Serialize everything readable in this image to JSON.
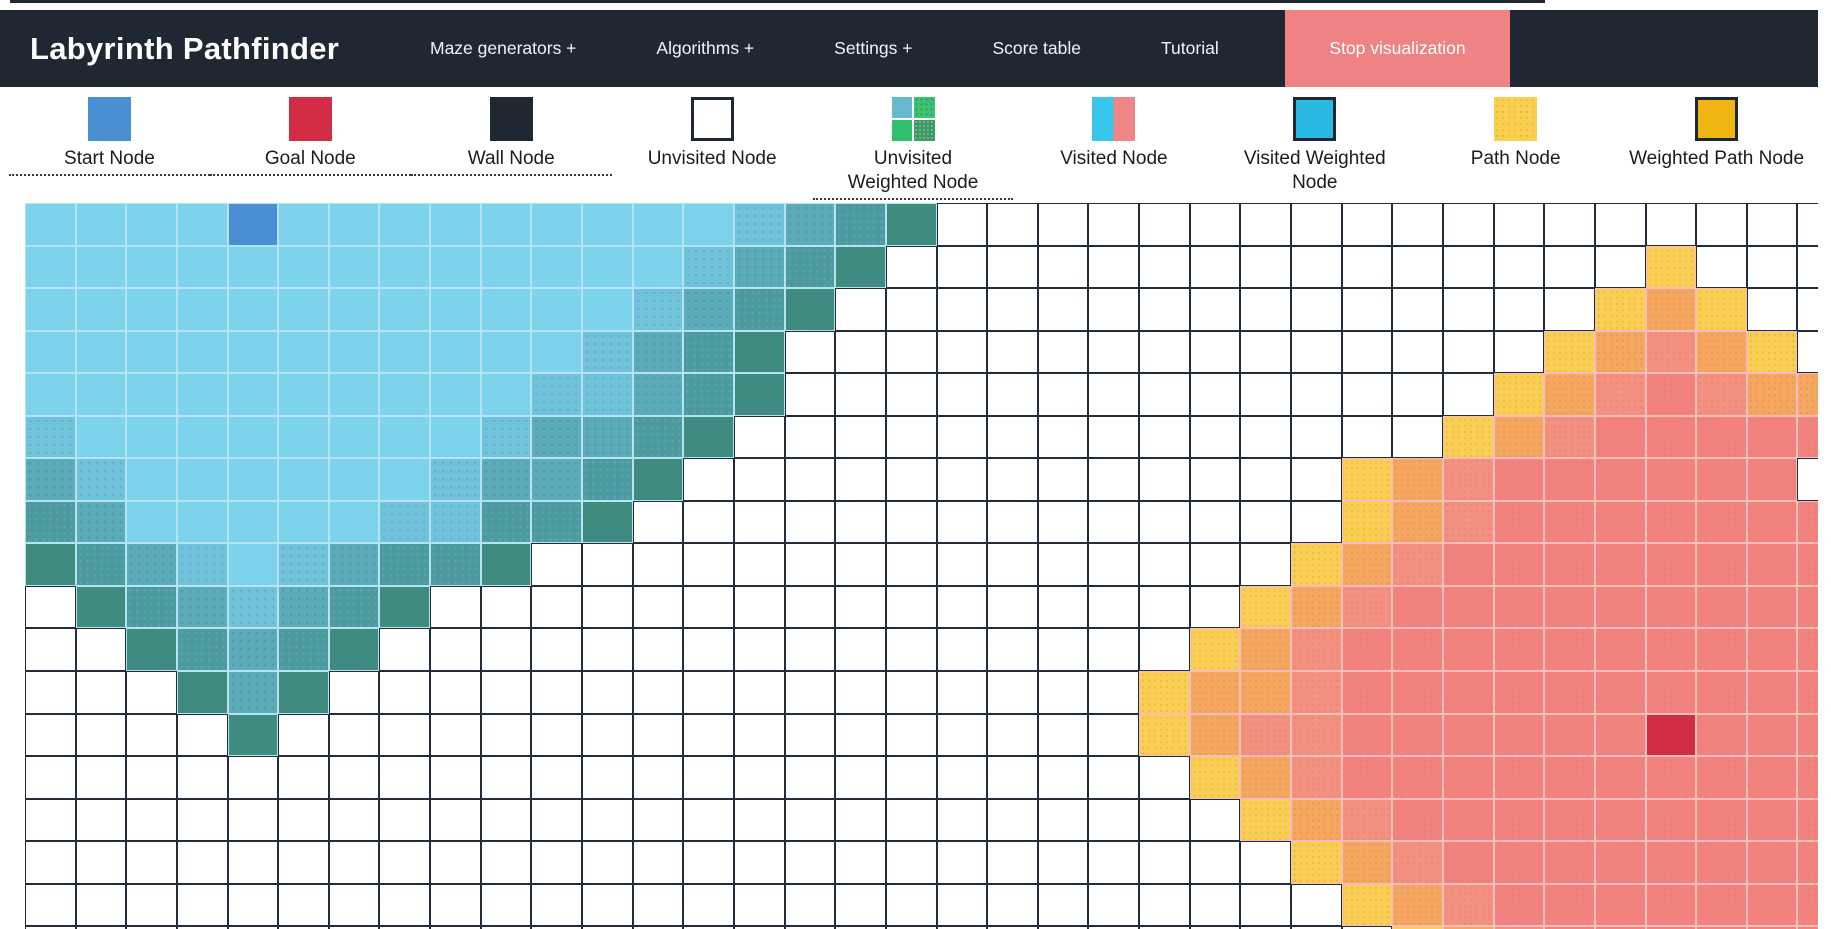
{
  "header": {
    "title": "Labyrinth Pathfinder",
    "nav_items": [
      {
        "label": "Maze generators +"
      },
      {
        "label": "Algorithms +"
      },
      {
        "label": "Settings +"
      },
      {
        "label": "Score table"
      },
      {
        "label": "Tutorial"
      }
    ],
    "stop_button": "Stop visualization"
  },
  "legend": {
    "items": [
      {
        "label": "Start Node",
        "type": "start",
        "underline": true,
        "two_line": false
      },
      {
        "label": "Goal Node",
        "type": "goal",
        "underline": true,
        "two_line": false
      },
      {
        "label": "Wall Node",
        "type": "wall",
        "underline": true,
        "two_line": false
      },
      {
        "label": "Unvisited Node",
        "type": "unvisited",
        "underline": false,
        "two_line": false
      },
      {
        "label": "Unvisited Weighted Node",
        "type": "unvisited-weighted",
        "underline": true,
        "two_line": true
      },
      {
        "label": "Visited Node",
        "type": "visited",
        "underline": false,
        "two_line": false
      },
      {
        "label": "Visited Weighted Node",
        "type": "visited-weighted",
        "underline": false,
        "two_line": true
      },
      {
        "label": "Path Node",
        "type": "path",
        "underline": false,
        "two_line": false
      },
      {
        "label": "Weighted Path Node",
        "type": "weighted-path",
        "underline": false,
        "two_line": false
      }
    ]
  },
  "colors": {
    "navbar_bg": "#1f2733",
    "stop_button_bg": "#ef8384",
    "start_node": "#4a8fd2",
    "goal_node": "#d22c44",
    "wall_node": "#1f2733",
    "visited_start_light": "#7dd2ec",
    "visited_start_dark": "#3e8b7f",
    "visited_goal_red": "#f1827d",
    "frontier_yellow": "#f8ce55",
    "frontier_orange": "#f5a661",
    "frontier_salmon": "#f29180",
    "unvisited_border": "#242d3c"
  },
  "grid": {
    "cols": 36,
    "cell_legend": {
      ".": "unvisited-white",
      "S": "start-node",
      "G": "goal-node",
      "a": "visited-start-light",
      "b": "visited-start-shade1",
      "c": "visited-start-shade2",
      "d": "visited-start-shade3",
      "e": "visited-start-frontier-dark",
      "Y": "goal-frontier-yellow",
      "O": "goal-frontier-orange",
      "P": "goal-frontier-salmon",
      "R": "visited-goal-red"
    },
    "rows": [
      "aaaaSaaaaaaaaabcde..................",
      "aaaaaaaaaaaaabcde...............Y...",
      "aaaaaaaaaaaabcde...............YOY..",
      "aaaaaaaaaaabcde...............YOPOY.",
      "aaaaaaaaaabbcde..............YOPRPOO",
      "baaaaaaaabccde..............YOPRRRRR",
      "cbaaaaaabccde.............YOPRRRRRR",
      "dcaaaaabbdde..............YOPRRRRRRR",
      "edcbabcdde...............YOPRRRRRRRR",
      ".edcbcde................YOPRRRRRRRRR",
      "..edcde................YOPRRRRRRRRRR",
      "...ece................YOOPRRRRRRRRRR",
      "....e.................YOPPRRRRRRGRRR",
      ".......................YOPRRRRRRRRRR",
      "........................YOPRRRRRRRRR",
      ".........................YOPRRRRRRRR",
      "..........................YOPRRRRRRR",
      "...........................YOPRRRRRR"
    ]
  }
}
